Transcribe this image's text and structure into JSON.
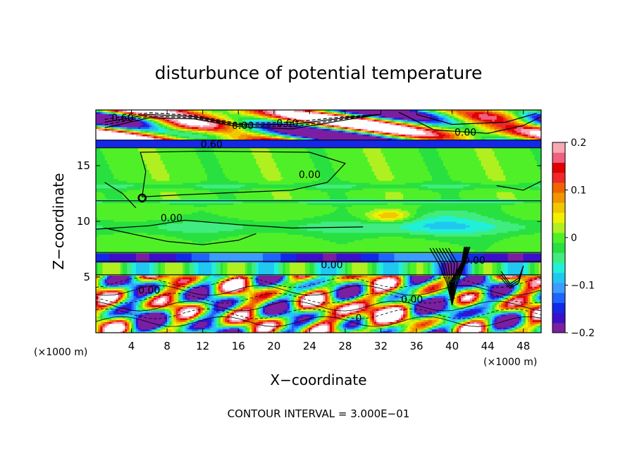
{
  "chart_data": {
    "type": "heatmap",
    "title": "disturbunce of potential temperature",
    "xlabel": "X−coordinate",
    "ylabel": "Z−coordinate",
    "x_unit": "(×1000 m)",
    "y_unit": "(×1000 m)",
    "xlim": [
      0,
      50
    ],
    "ylim": [
      0,
      20
    ],
    "x_ticks": [
      4,
      8,
      12,
      16,
      20,
      24,
      28,
      32,
      36,
      40,
      44,
      48
    ],
    "x_tick_labels": [
      "4",
      "8",
      "12",
      "16",
      "20",
      "24",
      "28",
      "32",
      "36",
      "40",
      "44",
      "48"
    ],
    "y_ticks": [
      5,
      10,
      15
    ],
    "y_tick_labels": [
      "5",
      "10",
      "15"
    ],
    "colorbar": {
      "range": [
        -0.2,
        0.2
      ],
      "ticks": [
        0.2,
        0.1,
        0,
        -0.1,
        -0.2
      ],
      "tick_labels": [
        "0.2",
        "0.1",
        "0",
        "−0.1",
        "−0.2"
      ],
      "colors": [
        "#7a1fa2",
        "#3b10c8",
        "#1428e8",
        "#1e64ff",
        "#3c9cff",
        "#20c8f0",
        "#20f0d8",
        "#40ec80",
        "#28e040",
        "#50f028",
        "#b0f020",
        "#f0f000",
        "#f0c800",
        "#f09600",
        "#f06400",
        "#f02828",
        "#e00000",
        "#f06080",
        "#f8a8b0"
      ]
    },
    "contour_interval_text": "CONTOUR INTERVAL = 3.000E−01",
    "contour_labels": [
      {
        "text": "0.60",
        "x": 3,
        "z": 19.0
      },
      {
        "text": "0.00",
        "x": 16.5,
        "z": 18.3
      },
      {
        "text": "0.60",
        "x": 21.5,
        "z": 18.5
      },
      {
        "text": "0.60",
        "x": 13,
        "z": 16.6
      },
      {
        "text": "0.00",
        "x": 41.5,
        "z": 17.7
      },
      {
        "text": "0.00",
        "x": 24,
        "z": 13.9
      },
      {
        "text": "0.00",
        "x": 8.5,
        "z": 10.0
      },
      {
        "text": "0.00",
        "x": 26.5,
        "z": 5.8
      },
      {
        "text": "0.00",
        "x": 42.5,
        "z": 6.2
      },
      {
        "text": "0.00",
        "x": 6,
        "z": 3.5
      },
      {
        "text": "0",
        "x": 29.5,
        "z": 1.0
      },
      {
        "text": "0.00",
        "x": 35.5,
        "z": 2.7
      }
    ]
  }
}
